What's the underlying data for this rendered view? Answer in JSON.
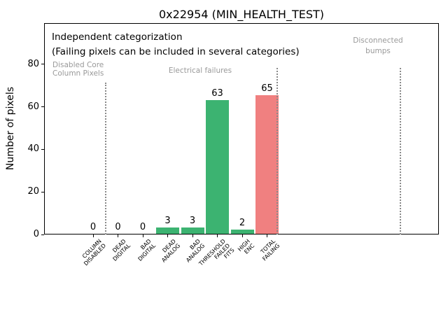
{
  "chart_data": {
    "type": "bar",
    "title": "0x22954 (MIN_HEALTH_TEST)",
    "ylabel": "Number of pixels",
    "xlabel": "",
    "ylim": [
      0,
      99
    ],
    "yticks": [
      0,
      20,
      40,
      60,
      80
    ],
    "grid": false,
    "legend": false,
    "categories": [
      "COLUMN DISABLED",
      "DEAD DIGITAL",
      "BAD DIGITAL",
      "DEAD ANALOG",
      "BAD ANALOG",
      "THRESHOLD FAILED FITS",
      "HIGH ENC",
      "TOTAL FAILING"
    ],
    "category_label_lines": [
      [
        "COLUMN",
        "DISABLED"
      ],
      [
        "DEAD",
        "DIGITAL"
      ],
      [
        "BAD",
        "DIGITAL"
      ],
      [
        "DEAD",
        "ANALOG"
      ],
      [
        "BAD",
        "ANALOG"
      ],
      [
        "THRESHOLD",
        "FAILED",
        "FITS"
      ],
      [
        "HIGH",
        "ENC"
      ],
      [
        "TOTAL",
        "FAILING"
      ]
    ],
    "values": [
      0,
      0,
      0,
      3,
      3,
      63,
      2,
      65
    ],
    "bar_colors": [
      "#3cb371",
      "#3cb371",
      "#3cb371",
      "#3cb371",
      "#3cb371",
      "#3cb371",
      "#3cb371",
      "#f08080"
    ],
    "annotations": {
      "note_lines": [
        "Independent categorization",
        "(Failing pixels can be included in several categories)"
      ],
      "regions": [
        {
          "name": "disabled-core-column-pixels",
          "lines": [
            "Disabled Core",
            "Column Pixels"
          ]
        },
        {
          "name": "electrical-failures",
          "lines": [
            "Electrical failures"
          ]
        },
        {
          "name": "disconnected-bumps",
          "lines": [
            "Disconnected",
            "bumps"
          ]
        }
      ]
    },
    "colors": {
      "bar_pass": "#3cb371",
      "bar_fail": "#f08080",
      "muted_text": "#999999",
      "separator_line": "#8a8a8a",
      "axis": "#000000",
      "background": "#ffffff"
    }
  }
}
